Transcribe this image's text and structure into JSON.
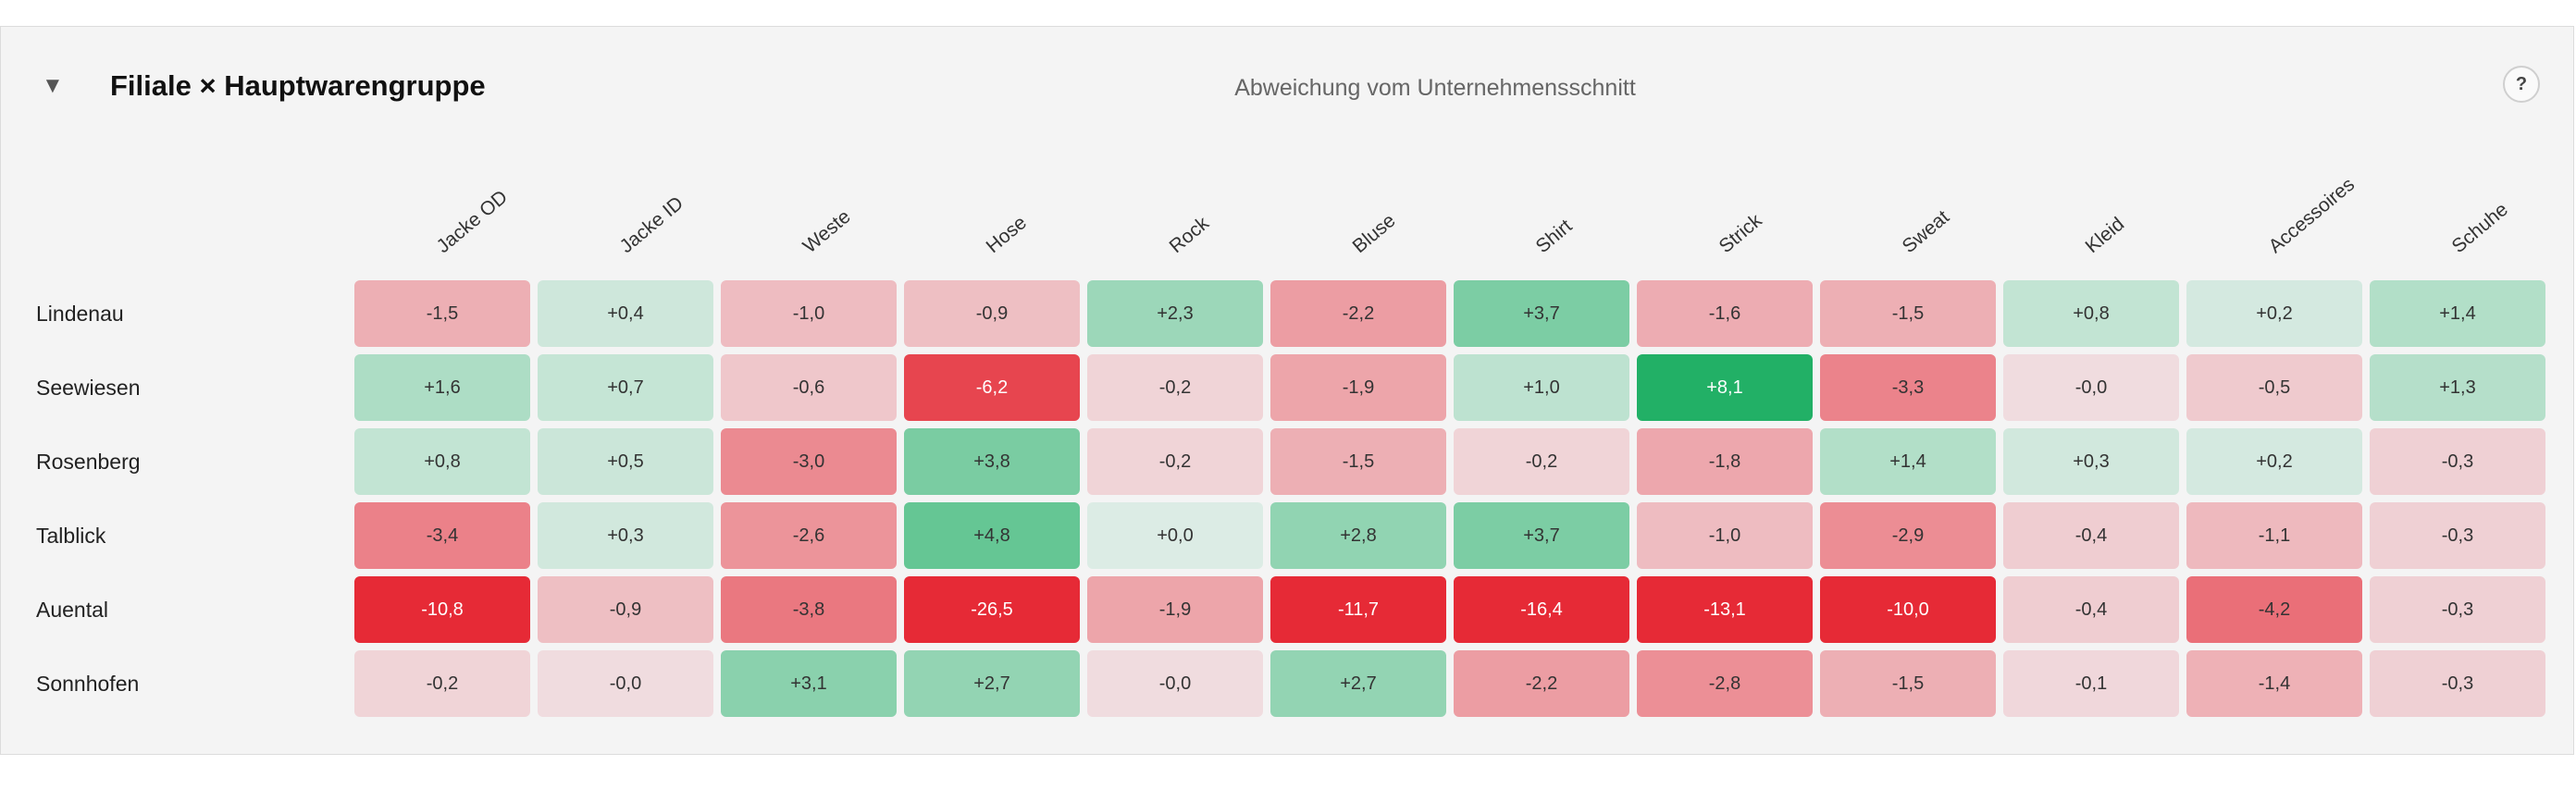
{
  "panel": {
    "toggle_icon": "▼",
    "title": "Filiale × Hauptwarengruppe",
    "subtitle": "Abweichung vom Unternehmensschnitt",
    "help_label": "?"
  },
  "columns": [
    "Jacke OD",
    "Jacke ID",
    "Weste",
    "Hose",
    "Rock",
    "Bluse",
    "Shirt",
    "Strick",
    "Sweat",
    "Kleid",
    "Accessoires",
    "Schuhe"
  ],
  "rows": [
    {
      "label": "Lindenau",
      "values": [
        "-1,5",
        "+0,4",
        "-1,0",
        "-0,9",
        "+2,3",
        "-2,2",
        "+3,7",
        "-1,6",
        "-1,5",
        "+0,8",
        "+0,2",
        "+1,4"
      ]
    },
    {
      "label": "Seewiesen",
      "values": [
        "+1,6",
        "+0,7",
        "-0,6",
        "-6,2",
        "-0,2",
        "-1,9",
        "+1,0",
        "+8,1",
        "-3,3",
        "-0,0",
        "-0,5",
        "+1,3"
      ]
    },
    {
      "label": "Rosenberg",
      "values": [
        "+0,8",
        "+0,5",
        "-3,0",
        "+3,8",
        "-0,2",
        "-1,5",
        "-0,2",
        "-1,8",
        "+1,4",
        "+0,3",
        "+0,2",
        "-0,3"
      ]
    },
    {
      "label": "Talblick",
      "values": [
        "-3,4",
        "+0,3",
        "-2,6",
        "+4,8",
        "+0,0",
        "+2,8",
        "+3,7",
        "-1,0",
        "-2,9",
        "-0,4",
        "-1,1",
        "-0,3"
      ]
    },
    {
      "label": "Auental",
      "values": [
        "-10,8",
        "-0,9",
        "-3,8",
        "-26,5",
        "-1,9",
        "-11,7",
        "-16,4",
        "-13,1",
        "-10,0",
        "-0,4",
        "-4,2",
        "-0,3"
      ]
    },
    {
      "label": "Sonnhofen",
      "values": [
        "-0,2",
        "-0,0",
        "+3,1",
        "+2,7",
        "-0,0",
        "+2,7",
        "-2,2",
        "-2,8",
        "-1,5",
        "-0,1",
        "-1,4",
        "-0,3"
      ]
    }
  ],
  "colors": {
    "positive": "#22b066",
    "negative": "#e62a36",
    "neutral_positive": "#dcece5",
    "neutral_negative": "#f0dcdf"
  }
}
